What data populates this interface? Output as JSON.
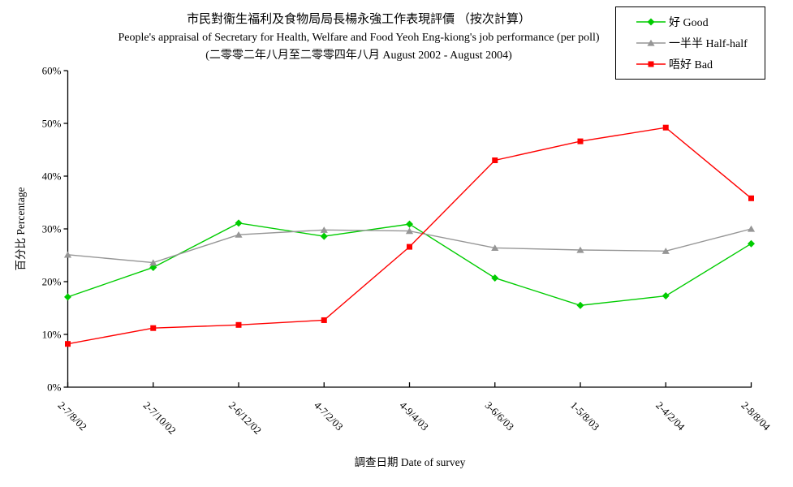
{
  "chart_data": {
    "type": "line",
    "title_lines": [
      "市民對衞生福利及食物局局長楊永強工作表現評價 （按次計算）",
      "People's appraisal of Secretary for Health, Welfare and Food Yeoh Eng-kiong's job performance (per poll)",
      "(二零零二年八月至二零零四年八月 August 2002 - August 2004)"
    ],
    "categories": [
      "2-7/8/02",
      "2-7/10/02",
      "2-6/12/02",
      "4-7/2/03",
      "4-9/4/03",
      "3-6/6/03",
      "1-5/8/03",
      "2-4/2/04",
      "2-8/8/04"
    ],
    "series": [
      {
        "key": "good",
        "name": "好 Good",
        "color": "#00CC00",
        "marker": "diamond",
        "values": [
          17.1,
          22.7,
          31.1,
          28.6,
          30.9,
          20.7,
          15.5,
          17.3,
          27.2
        ]
      },
      {
        "key": "half-half",
        "name": "一半半 Half-half",
        "color": "#969696",
        "marker": "triangle",
        "values": [
          25.1,
          23.6,
          28.9,
          29.8,
          29.6,
          26.4,
          26.0,
          25.8,
          30.0
        ]
      },
      {
        "key": "bad",
        "name": "唔好 Bad",
        "color": "#FF0000",
        "marker": "square",
        "values": [
          8.2,
          11.2,
          11.8,
          12.7,
          26.6,
          43.0,
          46.6,
          49.2,
          35.8
        ]
      }
    ],
    "xlabel": "調查日期 Date of survey",
    "ylabel": "百分比 Percentage",
    "ylim": [
      0,
      60
    ],
    "y_tick_step": 10,
    "y_tick_labels": [
      "0%",
      "10%",
      "20%",
      "30%",
      "40%",
      "50%",
      "60%"
    ],
    "grid": false,
    "legend_position": "top-right",
    "axis_color": "#000000",
    "background_color": "#FFFFFF"
  }
}
